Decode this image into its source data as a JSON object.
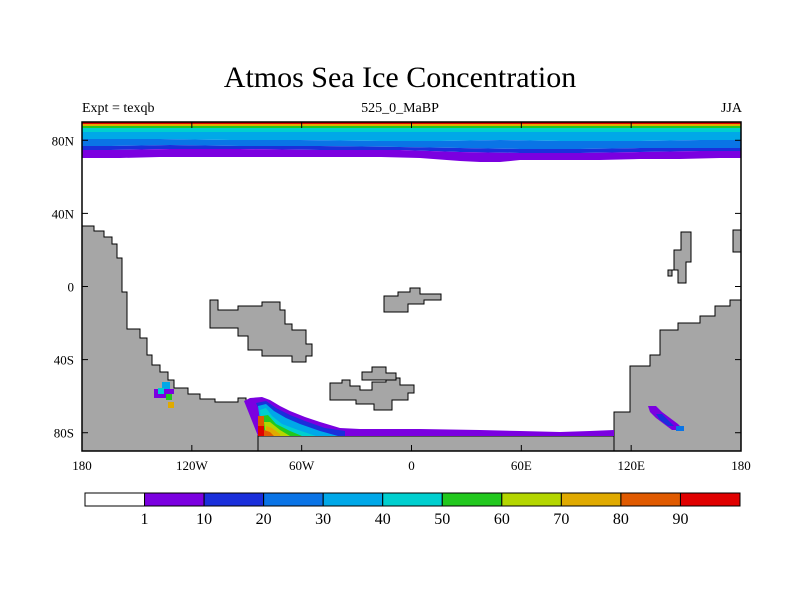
{
  "title": "Atmos Sea Ice Concentration",
  "subtitle_left": "Expt = texqb",
  "subtitle_center": "525_0_MaBP",
  "subtitle_right": "JJA",
  "map": {
    "lon_range": [
      -180,
      180
    ],
    "lat_range": [
      -90,
      90
    ],
    "x_ticks": [
      {
        "lon": -180,
        "label": "180"
      },
      {
        "lon": -120,
        "label": "120W"
      },
      {
        "lon": -60,
        "label": "60W"
      },
      {
        "lon": 0,
        "label": "0"
      },
      {
        "lon": 60,
        "label": "60E"
      },
      {
        "lon": 120,
        "label": "120E"
      },
      {
        "lon": 180,
        "label": "180"
      }
    ],
    "y_ticks": [
      {
        "lat": 80,
        "label": "80N"
      },
      {
        "lat": 40,
        "label": "40N"
      },
      {
        "lat": 0,
        "label": "0"
      },
      {
        "lat": -40,
        "label": "40S"
      },
      {
        "lat": -80,
        "label": "80S"
      }
    ],
    "land_color": "#a6a6a6"
  },
  "colorbar": {
    "colors": [
      "#ffffff",
      "#7b00e0",
      "#1a2fdb",
      "#0a74e6",
      "#00a8e8",
      "#00cfcf",
      "#22c81e",
      "#b4d600",
      "#e0aa00",
      "#e05a00",
      "#e00000"
    ],
    "labels": [
      "1",
      "10",
      "20",
      "30",
      "40",
      "50",
      "60",
      "70",
      "80",
      "90"
    ]
  }
}
